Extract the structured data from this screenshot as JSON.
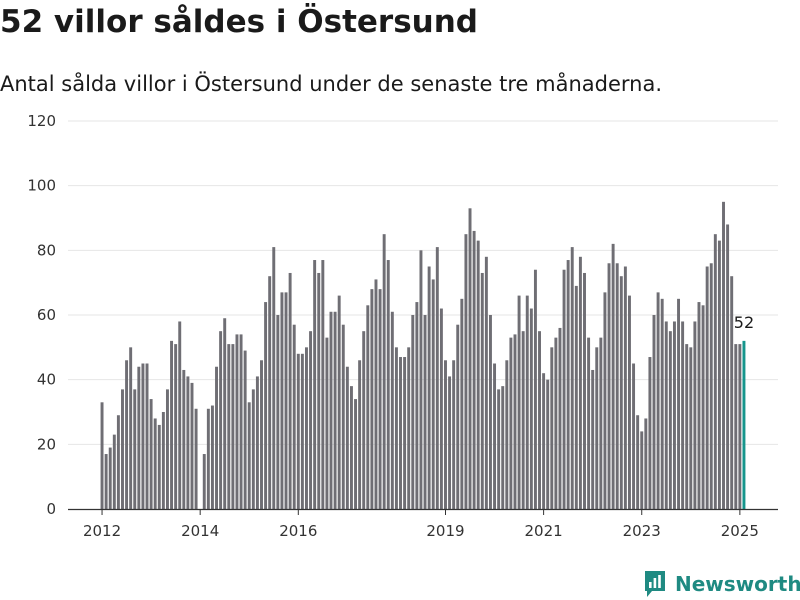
{
  "header": {
    "title": "52 villor såldes i Östersund",
    "subtitle": "Antal sålda villor i Östersund under de senaste tre månaderna."
  },
  "brand": {
    "name": "Newsworthy",
    "color": "#1f8a82"
  },
  "colors": {
    "bar": "#6f6e74",
    "highlight": "#16958c",
    "grid": "#e6e6e6",
    "axis": "#333333"
  },
  "chart_data": {
    "type": "bar",
    "title": "52 villor såldes i Östersund",
    "subtitle": "Antal sålda villor i Östersund under de senaste tre månaderna.",
    "x_start": "2012-01",
    "x_end": "2025-03",
    "ylim": [
      0,
      120
    ],
    "yticks": [
      0,
      20,
      40,
      60,
      80,
      100,
      120
    ],
    "xticks": [
      "2012",
      "2014",
      "2016",
      "2019",
      "2021",
      "2023",
      "2025"
    ],
    "grid": true,
    "highlight_last": true,
    "last_value_label": "52",
    "values": [
      33,
      17,
      19,
      23,
      29,
      37,
      46,
      50,
      37,
      44,
      45,
      45,
      34,
      28,
      26,
      30,
      37,
      52,
      51,
      58,
      43,
      41,
      39,
      31,
      0,
      17,
      31,
      32,
      44,
      55,
      59,
      51,
      51,
      54,
      54,
      49,
      33,
      37,
      41,
      46,
      64,
      72,
      81,
      60,
      67,
      67,
      73,
      57,
      48,
      48,
      50,
      55,
      77,
      73,
      77,
      53,
      61,
      61,
      66,
      57,
      44,
      38,
      34,
      46,
      55,
      63,
      68,
      71,
      68,
      85,
      77,
      61,
      50,
      47,
      47,
      50,
      60,
      64,
      80,
      60,
      75,
      71,
      81,
      62,
      46,
      41,
      46,
      57,
      65,
      85,
      93,
      86,
      83,
      73,
      78,
      60,
      45,
      37,
      38,
      46,
      53,
      54,
      66,
      55,
      66,
      62,
      74,
      55,
      42,
      40,
      50,
      53,
      56,
      74,
      77,
      81,
      69,
      78,
      73,
      53,
      43,
      50,
      53,
      67,
      76,
      82,
      76,
      72,
      75,
      66,
      45,
      29,
      24,
      28,
      47,
      60,
      67,
      65,
      58,
      55,
      58,
      65,
      58,
      51,
      50,
      58,
      64,
      63,
      75,
      76,
      85,
      83,
      95,
      88,
      72,
      51,
      51,
      52
    ]
  }
}
